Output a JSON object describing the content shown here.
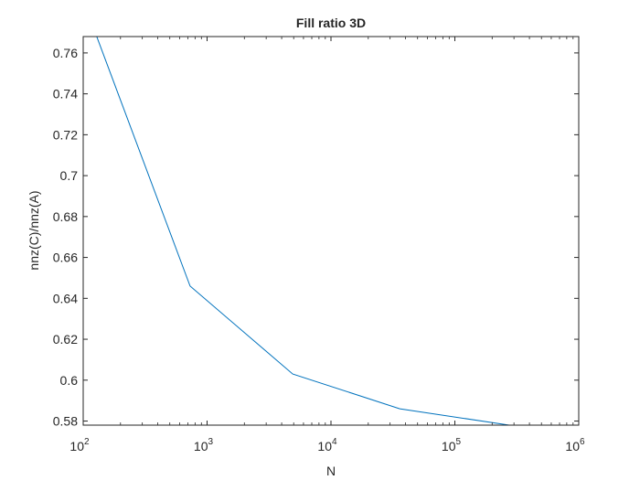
{
  "chart_data": {
    "type": "line",
    "title": "Fill ratio 3D",
    "xlabel": "N",
    "ylabel": "nnz(C)/nnz(A)",
    "xscale": "log",
    "xlim": [
      100,
      1000000
    ],
    "ylim": [
      0.578,
      0.768
    ],
    "grid": false,
    "box": true,
    "series": [
      {
        "color": "#0072BD",
        "x": [
          125,
          729,
          4913,
          35937,
          274625
        ],
        "y": [
          0.77,
          0.646,
          0.603,
          0.586,
          0.578
        ]
      }
    ],
    "x_ticks": [
      {
        "value": 100,
        "base": "10",
        "exp": "2"
      },
      {
        "value": 1000,
        "base": "10",
        "exp": "3"
      },
      {
        "value": 10000,
        "base": "10",
        "exp": "4"
      },
      {
        "value": 100000,
        "base": "10",
        "exp": "5"
      },
      {
        "value": 1000000,
        "base": "10",
        "exp": "6"
      }
    ],
    "y_ticks": [
      {
        "value": 0.58,
        "label": "0.58"
      },
      {
        "value": 0.6,
        "label": "0.6"
      },
      {
        "value": 0.62,
        "label": "0.62"
      },
      {
        "value": 0.64,
        "label": "0.64"
      },
      {
        "value": 0.66,
        "label": "0.66"
      },
      {
        "value": 0.68,
        "label": "0.68"
      },
      {
        "value": 0.7,
        "label": "0.7"
      },
      {
        "value": 0.72,
        "label": "0.72"
      },
      {
        "value": 0.74,
        "label": "0.74"
      },
      {
        "value": 0.76,
        "label": "0.76"
      }
    ]
  }
}
